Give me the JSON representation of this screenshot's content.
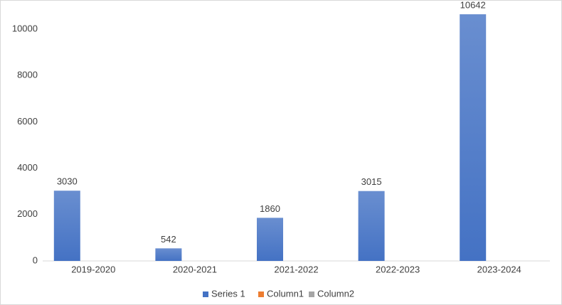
{
  "chart_data": {
    "type": "bar",
    "categories": [
      "2019-2020",
      "2020-2021",
      "2021-2022",
      "2022-2023",
      "2023-2024"
    ],
    "series": [
      {
        "name": "Series 1",
        "color": "#4472c4",
        "values": [
          3030,
          542,
          1860,
          3015,
          10642
        ]
      },
      {
        "name": "Column1",
        "color": "#ed7d31",
        "values": [
          null,
          null,
          null,
          null,
          null
        ]
      },
      {
        "name": "Column2",
        "color": "#a5a5a5",
        "values": [
          null,
          null,
          null,
          null,
          null
        ]
      }
    ],
    "ylim": [
      0,
      11000
    ],
    "yticks": [
      0,
      2000,
      4000,
      6000,
      8000,
      10000
    ],
    "data_labels": true,
    "legend": "bottom"
  }
}
